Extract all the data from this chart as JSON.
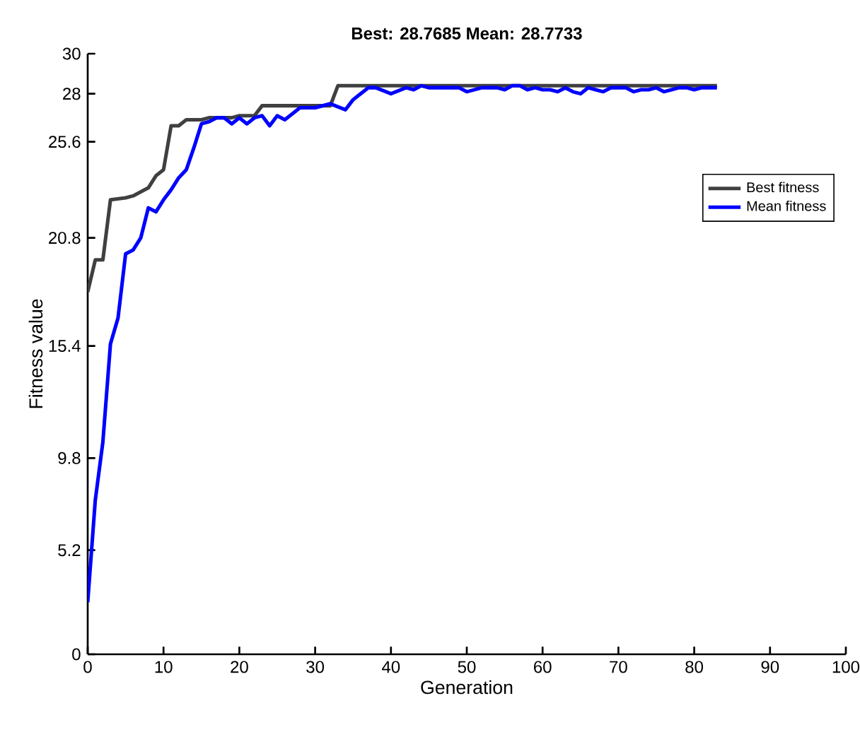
{
  "chart_data": {
    "type": "line",
    "title": "Best: 28.7685 Mean: 28.7733",
    "xlabel": "Generation",
    "ylabel": "Fitness value",
    "xlim": [
      0,
      100
    ],
    "xticks": [
      0,
      10,
      20,
      30,
      40,
      50,
      60,
      70,
      80,
      90,
      100
    ],
    "ylim": [
      0,
      30
    ],
    "yticks": [
      0,
      5.2,
      9.8,
      15.4,
      20.8,
      25.6,
      28,
      30
    ],
    "grid": false,
    "legend": "top right",
    "line_style": "solid",
    "marker": "none",
    "series": [
      {
        "name": "Best fitness",
        "color": "#404040",
        "x": [
          0,
          1,
          2,
          3,
          5,
          6,
          7,
          8,
          9,
          10,
          11,
          12,
          13,
          15,
          16,
          19,
          20,
          22,
          23,
          25,
          26,
          32,
          33,
          83
        ],
        "values": [
          18.1,
          19.7,
          19.7,
          22.7,
          22.8,
          22.9,
          23.1,
          23.3,
          23.9,
          24.2,
          26.4,
          26.4,
          26.7,
          26.7,
          26.8,
          26.8,
          26.9,
          26.9,
          27.4,
          27.4,
          27.4,
          27.4,
          28.4,
          28.4
        ]
      },
      {
        "name": "Mean fitness",
        "color": "#0000ff",
        "x": [
          0,
          1,
          2,
          3,
          4,
          5,
          6,
          7,
          8,
          9,
          10,
          11,
          12,
          13,
          14,
          15,
          16,
          17,
          18,
          19,
          20,
          21,
          22,
          23,
          24,
          25,
          26,
          28,
          30,
          32,
          34,
          35,
          37,
          38,
          40,
          42,
          43,
          44,
          45,
          46,
          47,
          48,
          49,
          50,
          51,
          52,
          53,
          54,
          55,
          56,
          57,
          58,
          59,
          60,
          61,
          62,
          63,
          64,
          65,
          66,
          67,
          68,
          69,
          70,
          71,
          72,
          73,
          74,
          75,
          76,
          77,
          78,
          79,
          80,
          81,
          82,
          83
        ],
        "values": [
          2.6,
          7.7,
          10.6,
          15.5,
          16.8,
          20.0,
          20.2,
          20.8,
          22.3,
          22.1,
          22.7,
          23.2,
          23.8,
          24.2,
          25.3,
          26.5,
          26.6,
          26.8,
          26.8,
          26.5,
          26.8,
          26.5,
          26.8,
          26.9,
          26.4,
          26.9,
          26.7,
          27.3,
          27.3,
          27.5,
          27.2,
          27.7,
          28.3,
          28.3,
          28.0,
          28.3,
          28.2,
          28.4,
          28.3,
          28.3,
          28.3,
          28.3,
          28.3,
          28.1,
          28.2,
          28.3,
          28.3,
          28.3,
          28.2,
          28.4,
          28.4,
          28.2,
          28.3,
          28.2,
          28.2,
          28.1,
          28.3,
          28.1,
          28.0,
          28.3,
          28.2,
          28.1,
          28.3,
          28.3,
          28.3,
          28.1,
          28.2,
          28.2,
          28.3,
          28.1,
          28.2,
          28.3,
          28.3,
          28.2,
          28.3,
          28.3,
          28.3
        ]
      }
    ]
  }
}
